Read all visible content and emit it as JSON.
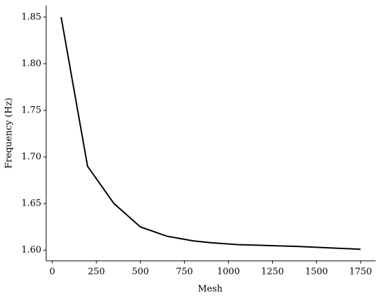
{
  "chart_data": {
    "type": "line",
    "x_label": "Mesh",
    "y_label": "Frequency (Hz)",
    "x": [
      50,
      200,
      350,
      500,
      650,
      800,
      900,
      1050,
      1400,
      1750
    ],
    "series": [
      {
        "color": "#000000",
        "values": [
          1.85,
          1.69,
          1.65,
          1.625,
          1.615,
          1.61,
          1.608,
          1.606,
          1.604,
          1.601
        ]
      }
    ],
    "xlim": [
      -35,
      1835
    ],
    "ylim": [
      1.5886,
      1.8625
    ],
    "xticks": [
      0,
      250,
      500,
      750,
      1000,
      1250,
      1500,
      1750
    ],
    "yticks": [
      {
        "value": 1.6,
        "label": "1.60"
      },
      {
        "value": 1.65,
        "label": "1.65"
      },
      {
        "value": 1.7,
        "label": "1.70"
      },
      {
        "value": 1.75,
        "label": "1.75"
      },
      {
        "value": 1.8,
        "label": "1.80"
      },
      {
        "value": 1.85,
        "label": "1.85"
      }
    ]
  }
}
